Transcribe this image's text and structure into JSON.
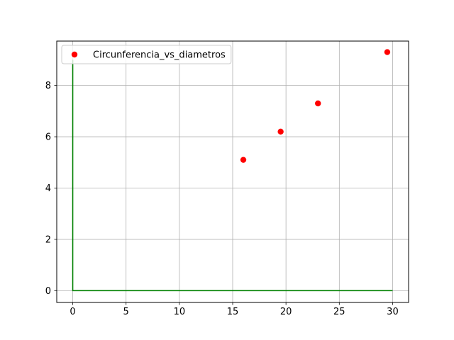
{
  "chart_data": {
    "type": "scatter",
    "title": "",
    "xlabel": "",
    "ylabel": "",
    "xlim": [
      -1.5,
      31.5
    ],
    "ylim": [
      -0.46,
      9.73
    ],
    "xticks": [
      0,
      5,
      10,
      15,
      20,
      25,
      30
    ],
    "yticks": [
      0,
      2,
      4,
      6,
      8
    ],
    "grid": true,
    "legend_position": "top-left",
    "series": [
      {
        "name": "Circunferencia_vs_diametros",
        "kind": "scatter",
        "color": "#ff0000",
        "x": [
          16.0,
          19.5,
          23.0,
          29.5
        ],
        "y": [
          5.1,
          6.2,
          7.3,
          9.3
        ]
      },
      {
        "kind": "line",
        "color": "#008000",
        "x": [
          0,
          0,
          30
        ],
        "y": [
          9.0,
          0,
          0
        ]
      }
    ]
  }
}
